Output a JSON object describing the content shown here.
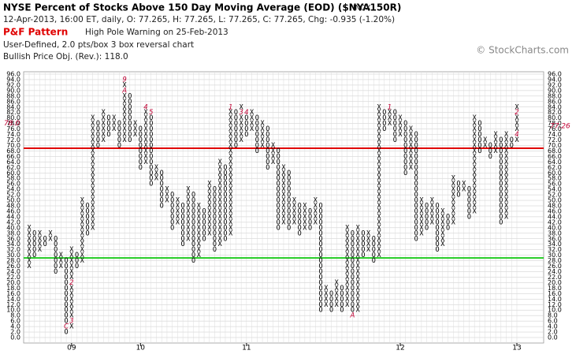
{
  "chart_data": {
    "type": "pnf",
    "title": "NYSE Percent of Stocks Above 150 Day Moving Average (EOD) ($NYA150R)",
    "exchange": "INDX",
    "quote_line": "12-Apr-2013, 16:00 ET, daily, O: 77.265, H: 77.265, L: 77.265, C: 77.265, Chg: -0.935 (-1.20%)",
    "pattern_label": "P&F Pattern",
    "pattern_text": "High Pole Warning on 25-Feb-2013",
    "settings_line": "User-Defined, 2.0 pts/box 3 box reversal chart",
    "objective_line": "Bullish Price Obj. (Rev.): 118.0",
    "watermark": "© StockCharts.com",
    "box_size": 2,
    "ylim": [
      0,
      96
    ],
    "yticks": [
      {
        "value": 0,
        "label": "0.0"
      },
      {
        "value": 2,
        "label": "2.0"
      },
      {
        "value": 4,
        "label": "4.0"
      },
      {
        "value": 6,
        "label": "6.0"
      },
      {
        "value": 8,
        "label": "8.0"
      },
      {
        "value": 10,
        "label": "10.0"
      },
      {
        "value": 12,
        "label": "12.0"
      },
      {
        "value": 14,
        "label": "14.0"
      },
      {
        "value": 16,
        "label": "16.0"
      },
      {
        "value": 18,
        "label": "18.0"
      },
      {
        "value": 20,
        "label": "20.0"
      },
      {
        "value": 22,
        "label": "22.0"
      },
      {
        "value": 24,
        "label": "24.0"
      },
      {
        "value": 26,
        "label": "26.0"
      },
      {
        "value": 28,
        "label": "28.0"
      },
      {
        "value": 30,
        "label": "30.0"
      },
      {
        "value": 32,
        "label": "32.0"
      },
      {
        "value": 34,
        "label": "34.0"
      },
      {
        "value": 36,
        "label": "36.0"
      },
      {
        "value": 38,
        "label": "38.0"
      },
      {
        "value": 40,
        "label": "40.0"
      },
      {
        "value": 42,
        "label": "42.0"
      },
      {
        "value": 44,
        "label": "44.0"
      },
      {
        "value": 46,
        "label": "46.0"
      },
      {
        "value": 48,
        "label": "48.0"
      },
      {
        "value": 50,
        "label": "50.0"
      },
      {
        "value": 52,
        "label": "52.0"
      },
      {
        "value": 54,
        "label": "54.0"
      },
      {
        "value": 56,
        "label": "56.0"
      },
      {
        "value": 58,
        "label": "58.0"
      },
      {
        "value": 60,
        "label": "60.0"
      },
      {
        "value": 62,
        "label": "62.0"
      },
      {
        "value": 64,
        "label": "64.0"
      },
      {
        "value": 66,
        "label": "66.0"
      },
      {
        "value": 68,
        "label": "68.0"
      },
      {
        "value": 70,
        "label": "70.0"
      },
      {
        "value": 72,
        "label": "72.0"
      },
      {
        "value": 74,
        "label": "74.0"
      },
      {
        "value": 76,
        "label": "76.0"
      },
      {
        "value": 78,
        "label": "78.0"
      },
      {
        "value": 80,
        "label": "80.0"
      },
      {
        "value": 82,
        "label": "82.0"
      },
      {
        "value": 84,
        "label": "84.0"
      },
      {
        "value": 86,
        "label": "86.0"
      },
      {
        "value": 88,
        "label": "88.0"
      },
      {
        "value": 90,
        "label": "90.0"
      },
      {
        "value": 92,
        "label": "92.0"
      },
      {
        "value": 94,
        "label": "94.0"
      },
      {
        "value": 96,
        "label": "96.0"
      }
    ],
    "grid": true,
    "hlines": [
      {
        "value": 69,
        "color": "#e00000"
      },
      {
        "value": 29,
        "color": "#22cc22"
      }
    ],
    "price_marker": {
      "value": 77.265,
      "label": "77.26",
      "color": "#c00033"
    },
    "box_marker": {
      "value": 78,
      "label": "78.0",
      "color": "#c00033"
    },
    "categories": [
      null,
      null,
      null,
      null,
      null,
      null,
      null,
      null,
      "09",
      null,
      null,
      null,
      null,
      null,
      null,
      null,
      null,
      null,
      null,
      null,
      null,
      "10",
      null,
      null,
      null,
      null,
      null,
      null,
      null,
      null,
      null,
      null,
      null,
      null,
      null,
      null,
      null,
      null,
      null,
      null,
      null,
      "11",
      null,
      null,
      null,
      null,
      null,
      null,
      null,
      null,
      null,
      null,
      null,
      null,
      null,
      null,
      null,
      null,
      null,
      null,
      null,
      null,
      null,
      null,
      null,
      null,
      null,
      null,
      null,
      null,
      "12",
      null,
      null,
      null,
      null,
      null,
      null,
      null,
      null,
      null,
      null,
      null,
      null,
      null,
      null,
      null,
      null,
      null,
      null,
      null,
      null,
      null,
      "13"
    ],
    "columns": [
      {
        "type": "X",
        "low": 26,
        "high": 40
      },
      {
        "type": "O",
        "low": 30,
        "high": 38
      },
      {
        "type": "X",
        "low": 32,
        "high": 38
      },
      {
        "type": "O",
        "low": 34,
        "high": 36
      },
      {
        "type": "X",
        "low": 36,
        "high": 38
      },
      {
        "type": "O",
        "low": 24,
        "high": 36
      },
      {
        "type": "X",
        "low": 26,
        "high": 30
      },
      {
        "type": "O",
        "low": 2,
        "high": 28,
        "notes": [
          {
            "value": 4,
            "label": "C"
          }
        ]
      },
      {
        "type": "X",
        "low": 4,
        "high": 32,
        "notes": [
          {
            "value": 6,
            "label": "3"
          },
          {
            "value": 20,
            "label": "2"
          }
        ]
      },
      {
        "type": "O",
        "low": 26,
        "high": 30
      },
      {
        "type": "X",
        "low": 28,
        "high": 50
      },
      {
        "type": "O",
        "low": 38,
        "high": 48
      },
      {
        "type": "X",
        "low": 40,
        "high": 80
      },
      {
        "type": "O",
        "low": 70,
        "high": 78
      },
      {
        "type": "X",
        "low": 72,
        "high": 82
      },
      {
        "type": "O",
        "low": 74,
        "high": 80
      },
      {
        "type": "X",
        "low": 76,
        "high": 80
      },
      {
        "type": "O",
        "low": 70,
        "high": 78
      },
      {
        "type": "X",
        "low": 72,
        "high": 94,
        "notes": [
          {
            "value": 94,
            "label": "9"
          },
          {
            "value": 90,
            "label": "A"
          }
        ]
      },
      {
        "type": "O",
        "low": 72,
        "high": 88
      },
      {
        "type": "X",
        "low": 74,
        "high": 78
      },
      {
        "type": "O",
        "low": 62,
        "high": 76
      },
      {
        "type": "X",
        "low": 64,
        "high": 84,
        "notes": [
          {
            "value": 84,
            "label": "4"
          }
        ]
      },
      {
        "type": "O",
        "low": 56,
        "high": 82,
        "notes": [
          {
            "value": 82,
            "label": "5"
          }
        ]
      },
      {
        "type": "X",
        "low": 58,
        "high": 62
      },
      {
        "type": "O",
        "low": 48,
        "high": 60
      },
      {
        "type": "X",
        "low": 50,
        "high": 54
      },
      {
        "type": "O",
        "low": 40,
        "high": 52
      },
      {
        "type": "X",
        "low": 42,
        "high": 50
      },
      {
        "type": "O",
        "low": 34,
        "high": 48
      },
      {
        "type": "X",
        "low": 36,
        "high": 54
      },
      {
        "type": "O",
        "low": 28,
        "high": 52
      },
      {
        "type": "X",
        "low": 30,
        "high": 48
      },
      {
        "type": "O",
        "low": 36,
        "high": 46
      },
      {
        "type": "X",
        "low": 38,
        "high": 56
      },
      {
        "type": "O",
        "low": 32,
        "high": 54
      },
      {
        "type": "X",
        "low": 34,
        "high": 64
      },
      {
        "type": "O",
        "low": 36,
        "high": 62
      },
      {
        "type": "X",
        "low": 38,
        "high": 84,
        "notes": [
          {
            "value": 84,
            "label": "1"
          }
        ]
      },
      {
        "type": "O",
        "low": 70,
        "high": 82
      },
      {
        "type": "X",
        "low": 72,
        "high": 84,
        "notes": [
          {
            "value": 82,
            "label": "3"
          }
        ]
      },
      {
        "type": "O",
        "low": 74,
        "high": 82,
        "notes": [
          {
            "value": 82,
            "label": "4"
          }
        ]
      },
      {
        "type": "X",
        "low": 76,
        "high": 82
      },
      {
        "type": "O",
        "low": 68,
        "high": 80
      },
      {
        "type": "X",
        "low": 70,
        "high": 78
      },
      {
        "type": "O",
        "low": 62,
        "high": 76
      },
      {
        "type": "X",
        "low": 64,
        "high": 70
      },
      {
        "type": "O",
        "low": 40,
        "high": 68
      },
      {
        "type": "X",
        "low": 42,
        "high": 62
      },
      {
        "type": "O",
        "low": 40,
        "high": 60
      },
      {
        "type": "X",
        "low": 42,
        "high": 50
      },
      {
        "type": "O",
        "low": 38,
        "high": 48
      },
      {
        "type": "X",
        "low": 40,
        "high": 48
      },
      {
        "type": "O",
        "low": 40,
        "high": 46
      },
      {
        "type": "X",
        "low": 42,
        "high": 50
      },
      {
        "type": "O",
        "low": 10,
        "high": 48
      },
      {
        "type": "X",
        "low": 12,
        "high": 18
      },
      {
        "type": "O",
        "low": 10,
        "high": 16
      },
      {
        "type": "X",
        "low": 12,
        "high": 20
      },
      {
        "type": "O",
        "low": 10,
        "high": 18
      },
      {
        "type": "X",
        "low": 12,
        "high": 40
      },
      {
        "type": "O",
        "low": 8,
        "high": 38,
        "notes": [
          {
            "value": 8,
            "label": "A"
          }
        ]
      },
      {
        "type": "X",
        "low": 10,
        "high": 40
      },
      {
        "type": "O",
        "low": 30,
        "high": 38
      },
      {
        "type": "X",
        "low": 32,
        "high": 38
      },
      {
        "type": "O",
        "low": 28,
        "high": 36
      },
      {
        "type": "X",
        "low": 30,
        "high": 84
      },
      {
        "type": "O",
        "low": 76,
        "high": 82
      },
      {
        "type": "X",
        "low": 78,
        "high": 84,
        "notes": [
          {
            "value": 84,
            "label": "1"
          }
        ]
      },
      {
        "type": "O",
        "low": 72,
        "high": 82
      },
      {
        "type": "X",
        "low": 74,
        "high": 80
      },
      {
        "type": "O",
        "low": 60,
        "high": 78
      },
      {
        "type": "X",
        "low": 62,
        "high": 76
      },
      {
        "type": "O",
        "low": 36,
        "high": 74
      },
      {
        "type": "X",
        "low": 38,
        "high": 50
      },
      {
        "type": "O",
        "low": 40,
        "high": 48
      },
      {
        "type": "X",
        "low": 42,
        "high": 50
      },
      {
        "type": "O",
        "low": 32,
        "high": 48
      },
      {
        "type": "X",
        "low": 34,
        "high": 46
      },
      {
        "type": "O",
        "low": 40,
        "high": 44
      },
      {
        "type": "X",
        "low": 42,
        "high": 58
      },
      {
        "type": "O",
        "low": 52,
        "high": 56
      },
      {
        "type": "X",
        "low": 54,
        "high": 56
      },
      {
        "type": "O",
        "low": 44,
        "high": 54
      },
      {
        "type": "X",
        "low": 46,
        "high": 80
      },
      {
        "type": "O",
        "low": 68,
        "high": 78
      },
      {
        "type": "X",
        "low": 70,
        "high": 72
      },
      {
        "type": "O",
        "low": 66,
        "high": 70
      },
      {
        "type": "X",
        "low": 68,
        "high": 74
      },
      {
        "type": "O",
        "low": 42,
        "high": 72
      },
      {
        "type": "X",
        "low": 44,
        "high": 74
      },
      {
        "type": "O",
        "low": 70,
        "high": 72
      },
      {
        "type": "X",
        "low": 72,
        "high": 84,
        "notes": [
          {
            "value": 82,
            "label": "2"
          },
          {
            "value": 74,
            "label": "4"
          }
        ]
      }
    ]
  }
}
